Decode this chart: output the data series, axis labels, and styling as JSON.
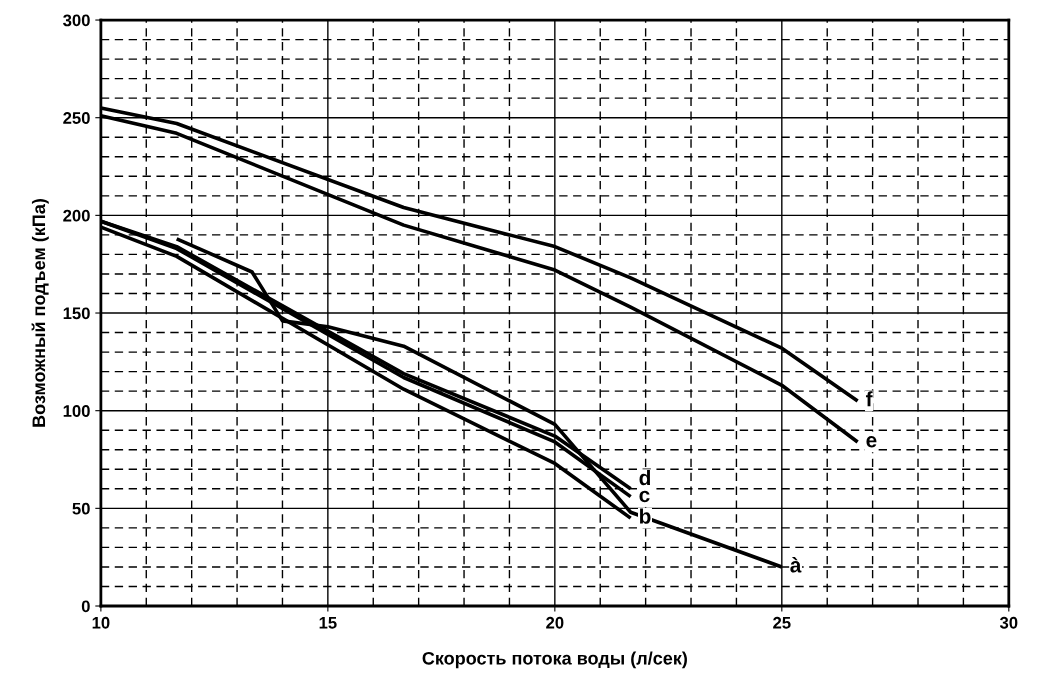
{
  "chart_data": {
    "type": "line",
    "xlabel": "Скорость потока воды (л/сек)",
    "ylabel": "Возможный подъем (кПа)",
    "xlim": [
      10,
      30
    ],
    "xticks": [
      10,
      15,
      20,
      25,
      30
    ],
    "ylim": [
      0,
      300
    ],
    "yticks": [
      0,
      50,
      100,
      150,
      200,
      250,
      300
    ],
    "grid": true,
    "line_style": "solid",
    "series": [
      {
        "name": "à",
        "color": "#000000",
        "x": [
          11.67,
          13.33,
          14.0,
          15.0,
          16.67,
          20.0,
          21.67,
          25.0
        ],
        "values": [
          188,
          171,
          146,
          143,
          133,
          93,
          48,
          20
        ]
      },
      {
        "name": "b",
        "color": "#000000",
        "x": [
          10,
          11.67,
          16.67,
          20.0,
          21.67
        ],
        "values": [
          194,
          179,
          111,
          73,
          45
        ]
      },
      {
        "name": "c",
        "color": "#000000",
        "x": [
          10,
          11.67,
          16.67,
          20.0,
          21.67
        ],
        "values": [
          197,
          183,
          117,
          84,
          56
        ]
      },
      {
        "name": "d",
        "color": "#000000",
        "x": [
          10,
          11.67,
          16.67,
          20.0,
          21.67
        ],
        "values": [
          197,
          184,
          119,
          87,
          60
        ]
      },
      {
        "name": "e",
        "color": "#000000",
        "x": [
          10,
          11.67,
          16.67,
          20.0,
          21.67,
          25.0,
          26.67
        ],
        "values": [
          251,
          242,
          195,
          172,
          153,
          113,
          84
        ]
      },
      {
        "name": "f",
        "color": "#000000",
        "x": [
          10,
          11.67,
          16.67,
          20.0,
          21.67,
          25.0,
          26.67
        ],
        "values": [
          255,
          247,
          204,
          184,
          168,
          132,
          105
        ]
      }
    ]
  }
}
